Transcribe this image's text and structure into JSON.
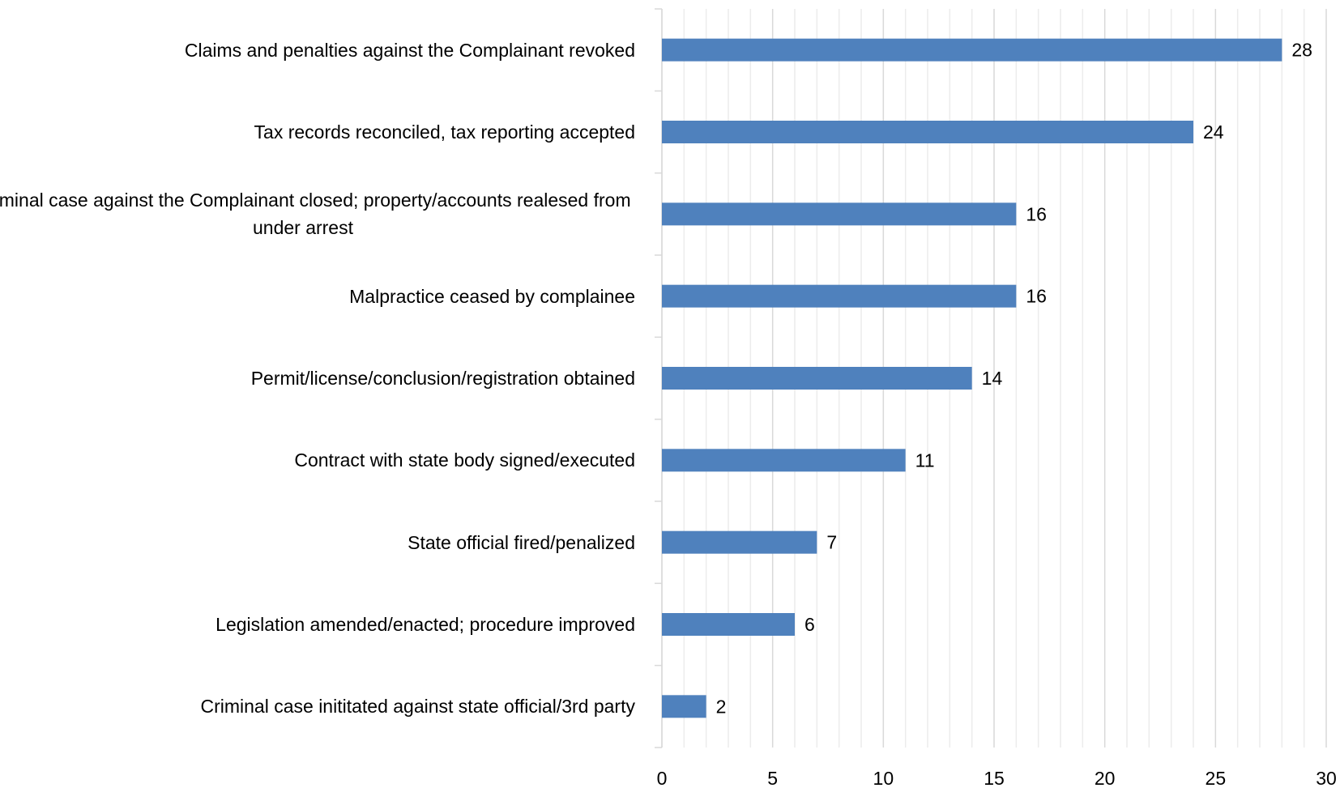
{
  "chart_data": {
    "type": "barh",
    "categories": [
      "Claims and penalties against the Complainant revoked",
      "Tax records reconciled, tax reporting accepted",
      "Criminal case against the Complainant closed; property/accounts realesed from under arrest",
      "Malpractice ceased by complainee",
      "Permit/license/conclusion/registration obtained",
      "Contract with state body signed/executed",
      "State official fired/penalized",
      "Legislation amended/enacted; procedure improved",
      "Criminal case inititated against state official/3rd party"
    ],
    "values": [
      28,
      24,
      16,
      16,
      14,
      11,
      7,
      6,
      2
    ],
    "color": "#4f81bd",
    "xlim": [
      0,
      30
    ],
    "xticks": [
      0,
      5,
      10,
      15,
      20,
      25,
      30
    ],
    "minor_xticks": [
      1,
      2,
      3,
      4,
      6,
      7,
      8,
      9,
      11,
      12,
      13,
      14,
      16,
      17,
      18,
      19,
      21,
      22,
      23,
      24,
      26,
      27,
      28,
      29
    ],
    "grid": true
  }
}
